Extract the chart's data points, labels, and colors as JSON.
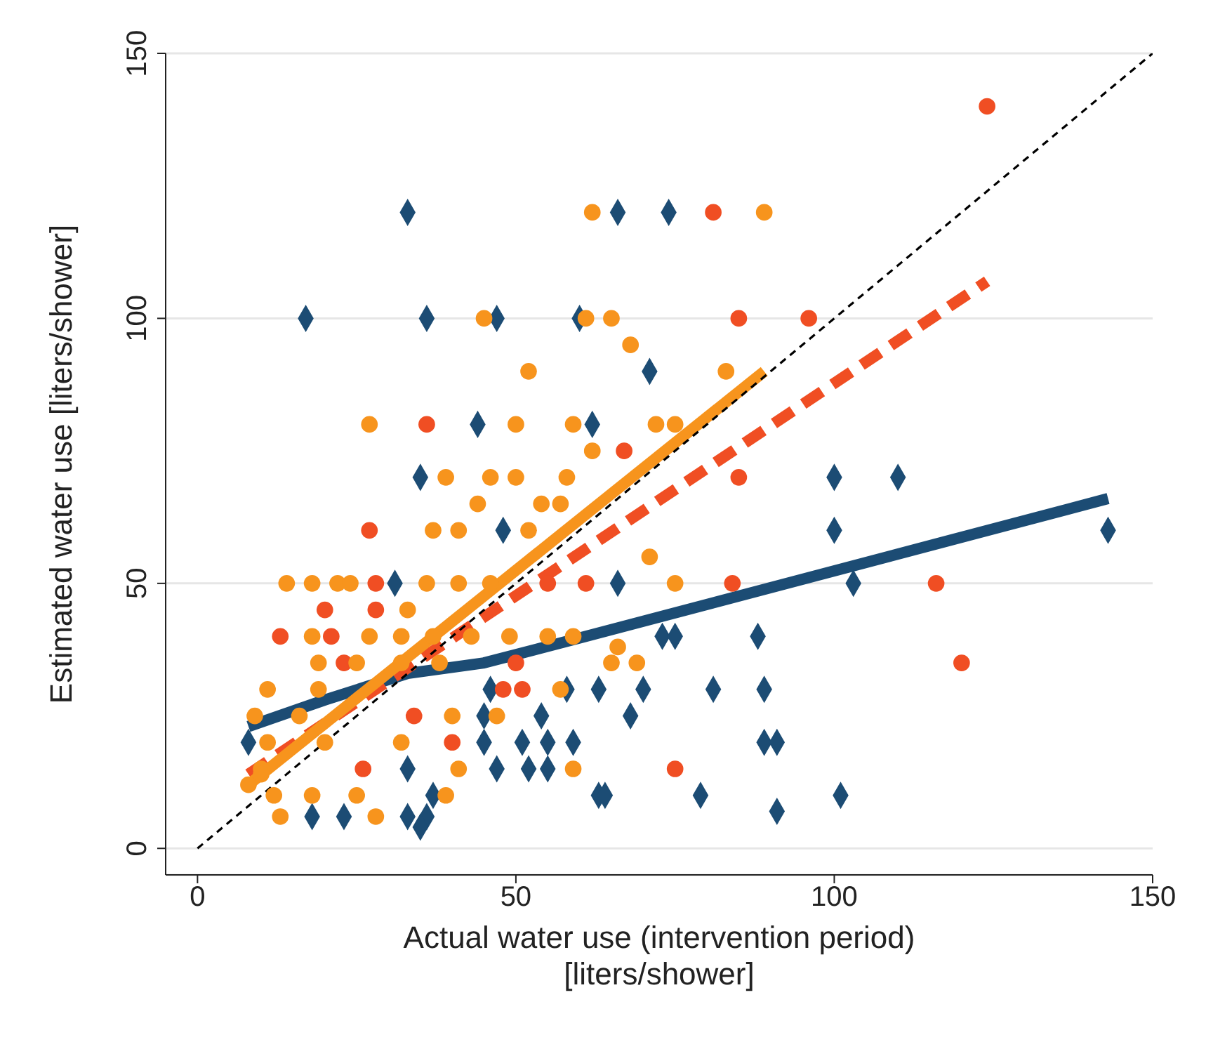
{
  "chart_data": {
    "type": "scatter",
    "xlabel": "Actual water use (intervention period)\n[liters/shower]",
    "ylabel": "Estimated water use [liters/shower]",
    "xlim": [
      -5,
      150
    ],
    "ylim": [
      -5,
      150
    ],
    "xticks": [
      0,
      50,
      100,
      150
    ],
    "yticks": [
      0,
      50,
      100,
      150
    ],
    "grid": "y",
    "legend": false,
    "series": [
      {
        "type": "scatter",
        "marker": "diamond",
        "color": "#1c4c74",
        "x": [
          33,
          66,
          74,
          17,
          36,
          47,
          60,
          71,
          44,
          62,
          100,
          110,
          35,
          48,
          100,
          143,
          31,
          66,
          103,
          73,
          75,
          88,
          46,
          58,
          63,
          70,
          81,
          89,
          45,
          54,
          68,
          8,
          45,
          51,
          55,
          59,
          89,
          91,
          33,
          47,
          52,
          55,
          37,
          63,
          64,
          79,
          101,
          91,
          18,
          23,
          33,
          36,
          35
        ],
        "values": [
          120,
          120,
          120,
          100,
          100,
          100,
          100,
          90,
          80,
          80,
          70,
          70,
          70,
          60,
          60,
          60,
          50,
          50,
          50,
          40,
          40,
          40,
          30,
          30,
          30,
          30,
          30,
          30,
          25,
          25,
          25,
          20,
          20,
          20,
          20,
          20,
          20,
          20,
          15,
          15,
          15,
          15,
          10,
          10,
          10,
          10,
          10,
          7,
          6,
          6,
          6,
          6,
          4
        ]
      },
      {
        "type": "scatter",
        "marker": "circle",
        "color": "#f04e23",
        "x": [
          124,
          81,
          85,
          96,
          36,
          67,
          85,
          27,
          28,
          55,
          61,
          84,
          116,
          20,
          28,
          13,
          21,
          23,
          50,
          120,
          48,
          51,
          34,
          40,
          26,
          75
        ],
        "values": [
          140,
          120,
          100,
          100,
          80,
          75,
          70,
          60,
          50,
          50,
          50,
          50,
          50,
          45,
          45,
          40,
          40,
          35,
          35,
          35,
          30,
          30,
          25,
          20,
          15,
          15
        ]
      },
      {
        "type": "scatter",
        "marker": "circle",
        "color": "#f7941d",
        "x": [
          62,
          89,
          45,
          61,
          65,
          68,
          52,
          83,
          27,
          50,
          59,
          72,
          75,
          62,
          39,
          46,
          50,
          58,
          44,
          54,
          57,
          37,
          41,
          52,
          71,
          14,
          18,
          22,
          24,
          36,
          41,
          46,
          75,
          33,
          18,
          27,
          32,
          37,
          43,
          49,
          55,
          59,
          66,
          19,
          25,
          32,
          38,
          65,
          69,
          11,
          19,
          57,
          9,
          16,
          40,
          47,
          11,
          20,
          32,
          10,
          41,
          59,
          18,
          25,
          39,
          13,
          28,
          8,
          10,
          12
        ],
        "values": [
          120,
          120,
          100,
          100,
          100,
          95,
          90,
          90,
          80,
          80,
          80,
          80,
          80,
          75,
          70,
          70,
          70,
          70,
          65,
          65,
          65,
          60,
          60,
          60,
          55,
          50,
          50,
          50,
          50,
          50,
          50,
          50,
          50,
          45,
          40,
          40,
          40,
          40,
          40,
          40,
          40,
          40,
          38,
          35,
          35,
          35,
          35,
          35,
          35,
          30,
          30,
          30,
          25,
          25,
          25,
          25,
          20,
          20,
          20,
          15,
          15,
          15,
          10,
          10,
          10,
          6,
          6,
          12,
          14,
          10
        ]
      },
      {
        "type": "line",
        "marker": "none",
        "line_style": "solid",
        "color": "#1c4c74",
        "x": [
          8,
          20,
          33,
          45,
          61,
          143
        ],
        "values": [
          23,
          28,
          33,
          35,
          40,
          66
        ]
      },
      {
        "type": "line",
        "marker": "none",
        "line_style": "dashed",
        "color": "#f04e23",
        "x": [
          8,
          124
        ],
        "values": [
          14,
          107
        ]
      },
      {
        "type": "line",
        "marker": "none",
        "line_style": "solid",
        "color": "#f7941d",
        "x": [
          8,
          89
        ],
        "values": [
          12,
          90
        ]
      },
      {
        "type": "line",
        "marker": "none",
        "line_style": "dashed",
        "color": "#000000",
        "x": [
          0,
          150
        ],
        "values": [
          0,
          150
        ]
      }
    ]
  }
}
